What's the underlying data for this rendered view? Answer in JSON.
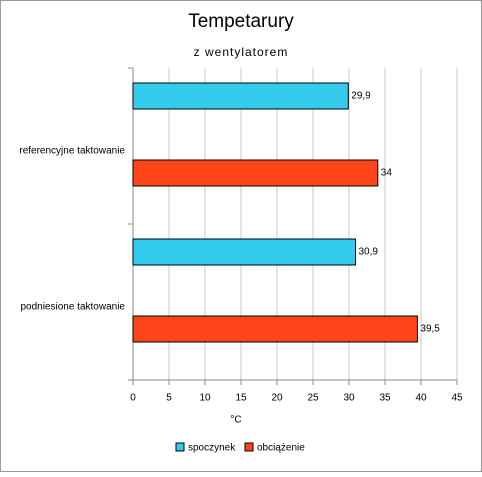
{
  "chart_data": {
    "type": "hbar",
    "title": "Tempetarury",
    "subtitle": "z wentylatorem",
    "xlabel": "°C",
    "categories": [
      "referencyjne taktowanie",
      "podniesione taktowanie"
    ],
    "series": [
      {
        "name": "spoczynek",
        "color": "#33ccee",
        "values": [
          29.9,
          30.9
        ],
        "value_labels": [
          "29,9",
          "30,9"
        ]
      },
      {
        "name": "obciążenie",
        "color": "#ff4419",
        "values": [
          34,
          39.5
        ],
        "value_labels": [
          "34",
          "39,5"
        ]
      }
    ],
    "xlim": [
      0,
      45
    ],
    "xticks": [
      0,
      5,
      10,
      15,
      20,
      25,
      30,
      35,
      40,
      45
    ],
    "grid": true,
    "legend": "bottom"
  }
}
